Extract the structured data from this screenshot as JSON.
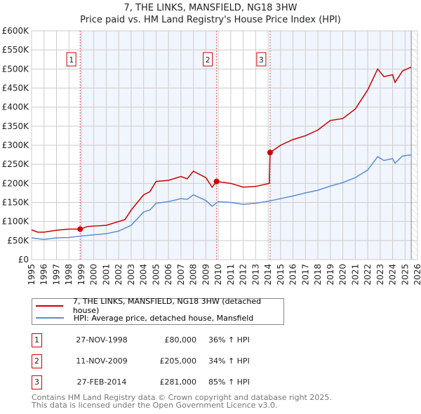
{
  "chart_data": {
    "type": "line",
    "title": "7, THE LINKS, MANSFIELD, NG18 3HW",
    "subtitle": "Price paid vs. HM Land Registry's House Price Index (HPI)",
    "xlim": [
      1995,
      2026
    ],
    "ylim": [
      0,
      600000
    ],
    "xticks": [
      "1995",
      "1996",
      "1997",
      "1998",
      "1999",
      "2000",
      "2001",
      "2002",
      "2003",
      "2004",
      "2005",
      "2006",
      "2007",
      "2008",
      "2009",
      "2010",
      "2011",
      "2012",
      "2013",
      "2014",
      "2015",
      "2016",
      "2017",
      "2018",
      "2019",
      "2020",
      "2021",
      "2022",
      "2023",
      "2024",
      "2025",
      "2026"
    ],
    "yticks": [
      "£0",
      "£50K",
      "£100K",
      "£150K",
      "£200K",
      "£250K",
      "£300K",
      "£350K",
      "£400K",
      "£450K",
      "£500K",
      "£550K",
      "£600K"
    ],
    "grid": true,
    "series": [
      {
        "name": "7, THE LINKS, MANSFIELD, NG18 3HW (detached house)",
        "color": "#cc0000",
        "x": [
          1995,
          1995.5,
          1996,
          1997,
          1998,
          1998.9,
          1999.5,
          2000,
          2001,
          2002,
          2002.5,
          2003,
          2004,
          2004.5,
          2005,
          2006,
          2007,
          2007.5,
          2008,
          2009,
          2009.5,
          2009.86,
          2011,
          2012,
          2013,
          2014.1,
          2014.16,
          2015,
          2016,
          2017,
          2018,
          2019,
          2020,
          2021,
          2022,
          2022.8,
          2023.3,
          2024,
          2024.2,
          2024.8,
          2025.5
        ],
        "y": [
          78000,
          72000,
          72000,
          77000,
          80000,
          80000,
          87000,
          88000,
          90000,
          100000,
          105000,
          130000,
          170000,
          178000,
          205000,
          208000,
          218000,
          212000,
          232000,
          215000,
          190000,
          205000,
          200000,
          190000,
          192000,
          200000,
          281000,
          300000,
          315000,
          325000,
          340000,
          365000,
          370000,
          395000,
          445000,
          500000,
          480000,
          485000,
          465000,
          495000,
          505000
        ]
      },
      {
        "name": "HPI: Average price, detached house, Mansfield",
        "color": "#5b8fd4",
        "x": [
          1995,
          1996,
          1997,
          1998,
          1999,
          2000,
          2001,
          2002,
          2003,
          2004,
          2004.5,
          2005,
          2006,
          2007,
          2007.5,
          2008,
          2009,
          2009.5,
          2010,
          2011,
          2012,
          2013,
          2014,
          2015,
          2016,
          2017,
          2018,
          2019,
          2020,
          2021,
          2022,
          2022.8,
          2023.3,
          2024,
          2024.2,
          2024.8,
          2025.5
        ],
        "y": [
          57000,
          53000,
          57000,
          58000,
          62000,
          65000,
          68000,
          75000,
          90000,
          125000,
          130000,
          148000,
          152000,
          160000,
          158000,
          170000,
          155000,
          140000,
          152000,
          150000,
          145000,
          148000,
          153000,
          160000,
          167000,
          175000,
          182000,
          193000,
          202000,
          215000,
          235000,
          270000,
          260000,
          265000,
          253000,
          272000,
          275000
        ]
      }
    ],
    "sales": [
      {
        "label": "1",
        "x": 1998.9,
        "price": 80000,
        "date": "27-NOV-1998",
        "price_text": "£80,000",
        "hpi": "36% ↑ HPI"
      },
      {
        "label": "2",
        "x": 2009.86,
        "price": 205000,
        "date": "11-NOV-2009",
        "price_text": "£205,000",
        "hpi": "34% ↑ HPI"
      },
      {
        "label": "3",
        "x": 2014.16,
        "price": 281000,
        "date": "27-FEB-2014",
        "price_text": "£281,000",
        "hpi": "85% ↑ HPI"
      }
    ],
    "data_end": 2025.5,
    "legend_placement": "below"
  },
  "footer": {
    "line1": "Contains HM Land Registry data © Crown copyright and database right 2025.",
    "line2": "This data is licensed under the Open Government Licence v3.0."
  }
}
